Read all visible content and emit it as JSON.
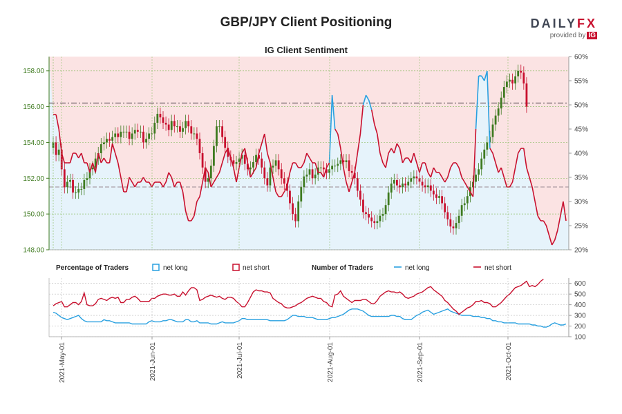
{
  "header": {
    "title": "GBP/JPY Client Positioning",
    "subtitle": "IG Client Sentiment",
    "brand_name_main": "DAILY",
    "brand_name_fx": "FX",
    "brand_provided": "provided by",
    "brand_ig": "IG"
  },
  "legend": {
    "pct_title": "Percentage of Traders",
    "pct_long": "net long",
    "pct_short": "net short",
    "num_title": "Number of Traders",
    "num_long": "net long",
    "num_short": "net short"
  },
  "colors": {
    "net_long": "#29a0e0",
    "net_short": "#c8102e",
    "candle_up": "#3e7a1f",
    "candle_down": "#c8102e",
    "short_zone": "#fbe3e3",
    "long_zone": "#e6f3fb"
  },
  "chart_data": [
    {
      "type": "line",
      "panel": "price and sentiment",
      "candles": {
        "close": [
          154,
          153.3,
          153.6,
          152.5,
          151.5,
          151.8,
          151.9,
          151.2,
          151.2,
          151.4,
          151.4,
          151.9,
          152.0,
          152.5,
          152.6,
          153.1,
          153.4,
          153.9,
          154.0,
          154.2,
          154.1,
          154.3,
          154.5,
          154.3,
          154.6,
          154.6,
          154.6,
          154.2,
          154.5,
          154.7,
          154.6,
          154.6,
          154.0,
          154.2,
          154.5,
          154.5,
          155.1,
          155.6,
          155.4,
          155.1,
          155.0,
          154.7,
          155.2,
          154.9,
          154.9,
          154.6,
          154.8,
          155.2,
          154.9,
          154.5,
          154.5,
          154.2,
          153.4,
          152.6,
          151.8,
          152.0,
          152.7,
          153.8,
          154.9,
          154.9,
          154.3,
          153.7,
          153.2,
          153.0,
          152.8,
          152.9,
          153.1,
          153.3,
          152.8,
          152.5,
          152.6,
          152.9,
          153.3,
          153.1,
          152.6,
          152.0,
          151.6,
          152.6,
          152.7,
          153.0,
          152.5,
          152.0,
          151.7,
          151.3,
          150.6,
          150.0,
          149.6,
          150.7,
          151.5,
          152.1,
          152.2,
          152.5,
          152.0,
          152.2,
          152.6,
          152.6,
          152.5,
          152.3,
          152.5,
          152.7,
          152.7,
          152.8,
          153.0,
          152.9,
          153.0,
          152.4,
          152.3,
          152.0,
          151.3,
          150.8,
          150.1,
          150.0,
          149.8,
          149.6,
          149.5,
          149.6,
          149.9,
          150.0,
          150.5,
          151.2,
          151.7,
          151.9,
          151.6,
          151.5,
          151.7,
          151.6,
          151.8,
          152.0,
          152.1,
          152.0,
          151.8,
          151.6,
          151.5,
          151.6,
          151.3,
          151.1,
          150.9,
          151.0,
          150.6,
          150.1,
          149.7,
          149.3,
          149.2,
          149.5,
          149.9,
          150.5,
          150.6,
          151.0,
          151.5,
          151.8,
          152.2,
          152.5,
          153.1,
          153.6,
          154.0,
          154.3,
          155.0,
          155.5,
          155.9,
          156.5,
          157.1,
          157.4,
          157.5,
          157.3,
          157.7,
          158.0,
          157.9,
          157.3,
          156.0
        ]
      },
      "net_short_pct": [
        48,
        48,
        45,
        40,
        38,
        38,
        38,
        40,
        40,
        39,
        40,
        38,
        38,
        36,
        38,
        36,
        40,
        38,
        39,
        38,
        38,
        42,
        40,
        38,
        35,
        32,
        32,
        35,
        34,
        33,
        34,
        34,
        35,
        34,
        34,
        33,
        34,
        34,
        34,
        33,
        34,
        36,
        35,
        33,
        34,
        34,
        32,
        28,
        26,
        26,
        27,
        30,
        31,
        34,
        37,
        36,
        33,
        34,
        35,
        36,
        38,
        40,
        41,
        39,
        37,
        34,
        37,
        40,
        41,
        38,
        35,
        36,
        37,
        40,
        42,
        44,
        40,
        38,
        35,
        32,
        31,
        31,
        32,
        33,
        36,
        38,
        38,
        37,
        37,
        38,
        40,
        39,
        38,
        38,
        36,
        36,
        35,
        37,
        38,
        52,
        45,
        44,
        41,
        37,
        34,
        32,
        34,
        36,
        40,
        44,
        50,
        52,
        51,
        49,
        46,
        44,
        40,
        38,
        37,
        40,
        41,
        40,
        42,
        41,
        38,
        39,
        39,
        38,
        40,
        38,
        36,
        38,
        38,
        36,
        35,
        37,
        36,
        36,
        35,
        34,
        35,
        37,
        38,
        38,
        37,
        35,
        34,
        33,
        32,
        31,
        45,
        56,
        56,
        55,
        57,
        41,
        40,
        38,
        36,
        37,
        35,
        33,
        33,
        34,
        37,
        40,
        41,
        41,
        37,
        35,
        33,
        30,
        27,
        26,
        26,
        25,
        23,
        21,
        22,
        24,
        27,
        30,
        26
      ],
      "net_long_pct": [
        52,
        52,
        55,
        60,
        62,
        62,
        62,
        60,
        60,
        61,
        60,
        62,
        62,
        64,
        62,
        64,
        60,
        62,
        61,
        62,
        62,
        58,
        60,
        62,
        65,
        68,
        68,
        65,
        66,
        67,
        66,
        66,
        65,
        66,
        66,
        67,
        66,
        66,
        66,
        67,
        66,
        64,
        65,
        67,
        66,
        66,
        68,
        72,
        74,
        74,
        73,
        70,
        69,
        66,
        63,
        64,
        67,
        66,
        65,
        64,
        62,
        60,
        59,
        61,
        63,
        66,
        63,
        60,
        59,
        62,
        65,
        64,
        63,
        60,
        58,
        56,
        60,
        62,
        65,
        68,
        69,
        69,
        68,
        67,
        64,
        62,
        62,
        63,
        63,
        62,
        60,
        61,
        62,
        62,
        64,
        64,
        65,
        63,
        62,
        48,
        55,
        56,
        59,
        63,
        66,
        68,
        66,
        64,
        60,
        56,
        50,
        48,
        49,
        51,
        54,
        56,
        60,
        62,
        63,
        60,
        59,
        60,
        58,
        59,
        62,
        61,
        61,
        62,
        60,
        62,
        64,
        62,
        62,
        64,
        65,
        63,
        64,
        64,
        65,
        66,
        65,
        63,
        62,
        62,
        63,
        65,
        66,
        67,
        68,
        69,
        55,
        44,
        44,
        45,
        43,
        59,
        60,
        62,
        64,
        63,
        65,
        67,
        67,
        66,
        63,
        60,
        59,
        59,
        63,
        65,
        67,
        70,
        73,
        74,
        74,
        75,
        77,
        79,
        78,
        76,
        73,
        70,
        74
      ],
      "price_range": [
        148,
        158.8
      ],
      "price_ticks": [
        "158.00",
        "156.00",
        "154.00",
        "152.00",
        "150.00",
        "148.00"
      ],
      "pct_range": [
        20,
        60
      ],
      "pct_ticks": [
        "60%",
        "55%",
        "50%",
        "45%",
        "40%",
        "35%",
        "30%",
        "25%",
        "20%"
      ],
      "reference_price": 156.2,
      "reference_pct": 33
    },
    {
      "type": "line",
      "panel": "number of traders",
      "net_short": [
        390,
        410,
        420,
        430,
        380,
        380,
        400,
        420,
        420,
        400,
        430,
        510,
        400,
        390,
        390,
        410,
        450,
        460,
        450,
        440,
        460,
        470,
        460,
        470,
        420,
        420,
        450,
        450,
        470,
        480,
        460,
        430,
        430,
        430,
        430,
        460,
        460,
        480,
        490,
        500,
        500,
        490,
        490,
        500,
        480,
        480,
        520,
        490,
        530,
        560,
        560,
        540,
        440,
        450,
        470,
        480,
        490,
        480,
        470,
        480,
        460,
        450,
        470,
        470,
        460,
        430,
        410,
        380,
        380,
        420,
        470,
        520,
        540,
        530,
        530,
        520,
        520,
        510,
        460,
        440,
        420,
        410,
        380,
        370,
        370,
        380,
        390,
        410,
        420,
        440,
        460,
        470,
        480,
        470,
        460,
        460,
        430,
        420,
        390,
        380,
        490,
        500,
        530,
        480,
        460,
        440,
        420,
        440,
        440,
        440,
        450,
        450,
        430,
        410,
        410,
        440,
        480,
        500,
        520,
        530,
        520,
        520,
        510,
        520,
        500,
        470,
        460,
        470,
        480,
        500,
        510,
        520,
        540,
        560,
        570,
        540,
        520,
        500,
        480,
        440,
        420,
        390,
        360,
        340,
        310,
        330,
        350,
        370,
        380,
        400,
        430,
        430,
        440,
        420,
        420,
        410,
        380,
        380,
        400,
        420,
        450,
        480,
        500,
        530,
        560,
        570,
        580,
        600,
        620,
        570,
        580,
        570,
        590,
        620,
        640
      ],
      "net_long": [
        330,
        320,
        300,
        280,
        270,
        260,
        270,
        280,
        290,
        300,
        270,
        250,
        240,
        240,
        240,
        240,
        240,
        240,
        260,
        250,
        250,
        240,
        230,
        230,
        230,
        230,
        230,
        230,
        220,
        220,
        220,
        220,
        220,
        220,
        240,
        250,
        240,
        240,
        240,
        250,
        250,
        260,
        260,
        250,
        240,
        240,
        240,
        260,
        260,
        240,
        240,
        250,
        230,
        230,
        230,
        230,
        220,
        220,
        220,
        230,
        240,
        230,
        230,
        230,
        230,
        240,
        250,
        270,
        270,
        260,
        260,
        260,
        260,
        260,
        260,
        260,
        260,
        250,
        250,
        250,
        250,
        250,
        250,
        260,
        280,
        300,
        300,
        290,
        290,
        290,
        280,
        280,
        280,
        270,
        260,
        260,
        260,
        260,
        270,
        280,
        280,
        290,
        300,
        310,
        330,
        350,
        360,
        360,
        360,
        350,
        340,
        320,
        300,
        290,
        290,
        290,
        290,
        290,
        290,
        290,
        300,
        300,
        290,
        290,
        270,
        260,
        260,
        260,
        280,
        300,
        310,
        330,
        340,
        350,
        330,
        310,
        320,
        330,
        340,
        350,
        360,
        340,
        330,
        320,
        310,
        300,
        300,
        300,
        300,
        290,
        290,
        290,
        280,
        280,
        270,
        270,
        250,
        250,
        240,
        240,
        230,
        230,
        230,
        230,
        230,
        220,
        220,
        220,
        220,
        220,
        210,
        210,
        200,
        200,
        190,
        190,
        200,
        220,
        230,
        220,
        210,
        210,
        220
      ],
      "yrange": [
        100,
        650
      ],
      "yticks": [
        "600",
        "500",
        "400",
        "300",
        "200",
        "100"
      ]
    }
  ],
  "dates": [
    "2021-May-01",
    "2021-Jun-01",
    "2021-Jul-01",
    "2021-Aug-01",
    "2021-Sep-01",
    "2021-Oct-01"
  ]
}
